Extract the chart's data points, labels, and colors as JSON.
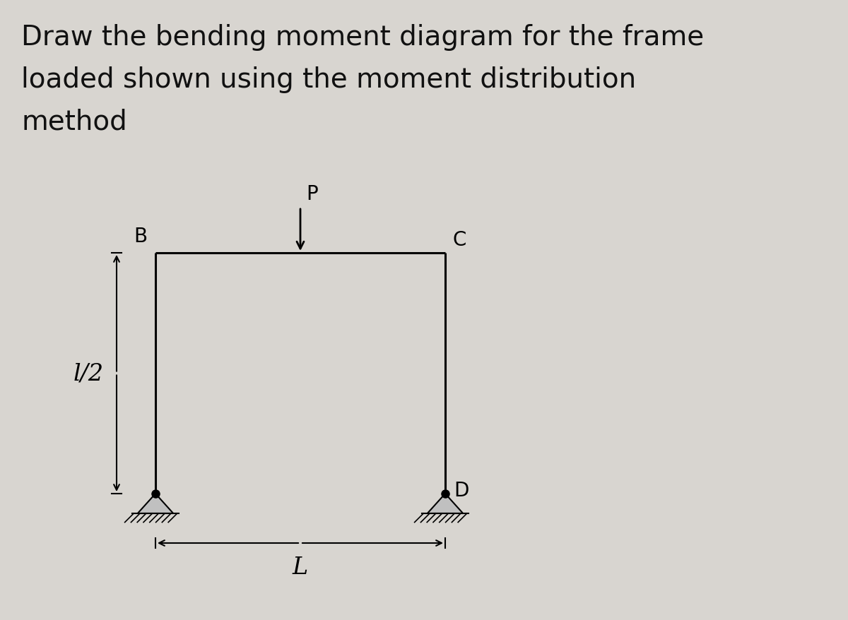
{
  "title_line1": "Draw the bending moment diagram for the frame",
  "title_line2": "loaded shown using the moment distribution",
  "title_line3": "method",
  "title_fontsize": 28,
  "title_color": "#111111",
  "bg_color": "#d8d5d0",
  "frame_color": "#000000",
  "frame_linewidth": 2.2,
  "label_B": "B",
  "label_C": "C",
  "label_D": "D",
  "label_P": "P",
  "label_L": "L",
  "label_half": "l/2",
  "annotation_fontsize": 20,
  "half_label_fontsize": 22
}
